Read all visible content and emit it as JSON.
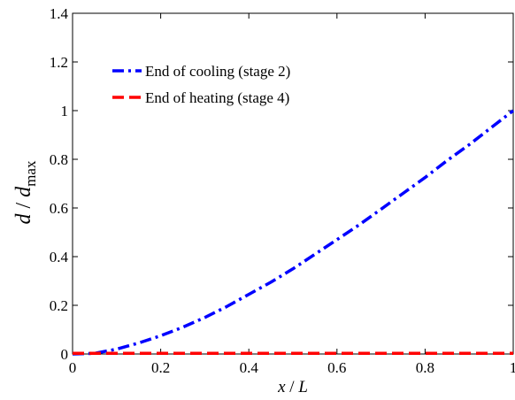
{
  "chart_data": {
    "type": "line",
    "title": "",
    "xlabel": {
      "var": "x",
      "sep": " / ",
      "ref": "L"
    },
    "ylabel": {
      "var": "d",
      "sep": " / ",
      "ref": "d",
      "sub": "max"
    },
    "xlim": [
      0,
      1
    ],
    "ylim": [
      0,
      1.4
    ],
    "xticks": [
      0,
      0.2,
      0.4,
      0.6,
      0.8,
      1
    ],
    "xtick_labels": [
      "0",
      "0.2",
      "0.4",
      "0.6",
      "0.8",
      "1"
    ],
    "yticks": [
      0,
      0.2,
      0.4,
      0.6,
      0.8,
      1,
      1.2,
      1.4
    ],
    "ytick_labels": [
      "0",
      "0.2",
      "0.4",
      "0.6",
      "0.8",
      "1",
      "1.2",
      "1.4"
    ],
    "grid": false,
    "legend_position": "top-left",
    "series": [
      {
        "name": "End of cooling (stage 2)",
        "color": "#0000ff",
        "style": "dash-dot",
        "x": [
          0,
          0.05,
          0.1,
          0.15,
          0.2,
          0.25,
          0.3,
          0.35,
          0.4,
          0.45,
          0.5,
          0.55,
          0.6,
          0.65,
          0.7,
          0.75,
          0.8,
          0.85,
          0.9,
          0.95,
          1.0
        ],
        "y": [
          0,
          0.0025,
          0.02,
          0.045,
          0.075,
          0.11,
          0.15,
          0.195,
          0.245,
          0.295,
          0.35,
          0.41,
          0.47,
          0.53,
          0.595,
          0.66,
          0.725,
          0.795,
          0.86,
          0.93,
          1.0
        ]
      },
      {
        "name": "End of heating (stage 4)",
        "color": "#ff0000",
        "style": "dashed",
        "x": [
          0,
          0.25,
          0.5,
          0.75,
          1.0
        ],
        "y": [
          0.003,
          0.003,
          0.003,
          0.003,
          0.003
        ]
      }
    ]
  }
}
